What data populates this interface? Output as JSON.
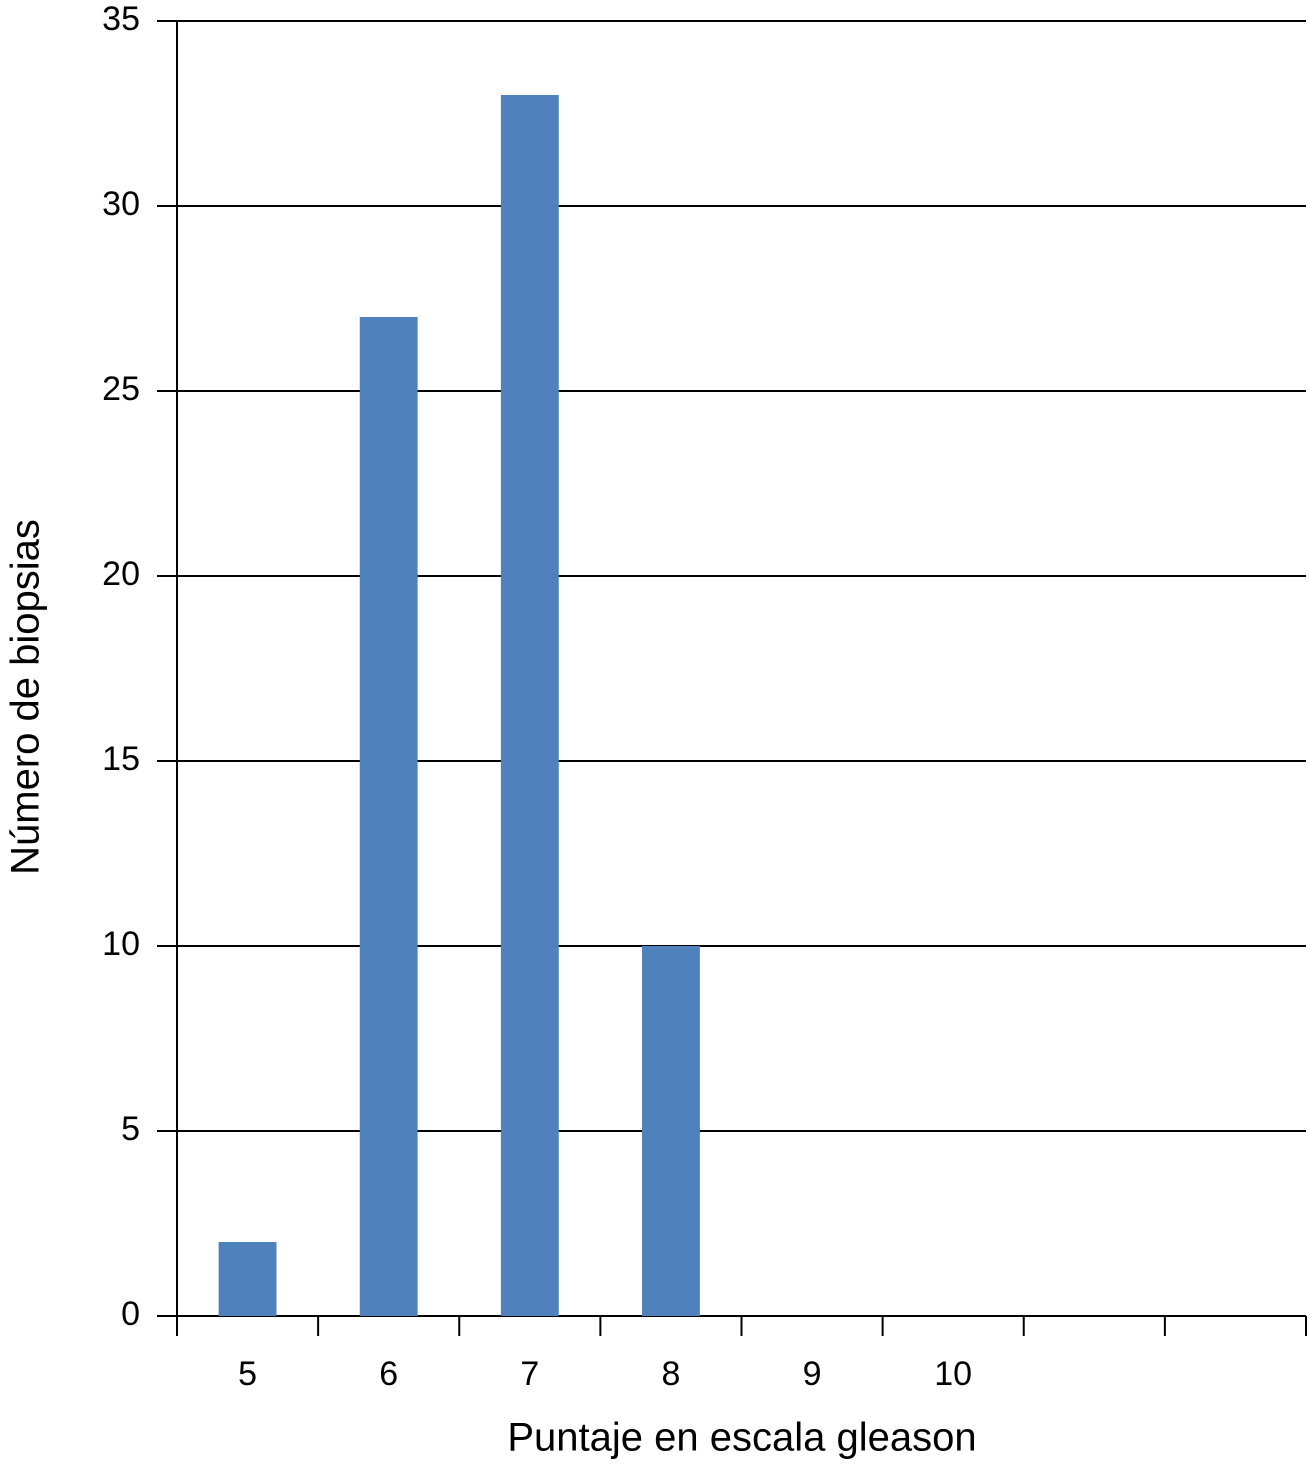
{
  "chart_data": {
    "type": "bar",
    "x_label": "Puntaje en escala gleason",
    "y_label": "Número de biopsias",
    "categories": [
      "5",
      "6",
      "7",
      "8",
      "9",
      "10",
      null,
      null
    ],
    "values": [
      2,
      27,
      33,
      10,
      0,
      0,
      null,
      null
    ],
    "color": "#4f81bd",
    "ylim": [
      0,
      35
    ],
    "yticks": [
      0,
      5,
      10,
      15,
      20,
      25,
      30,
      35
    ],
    "grid": true
  }
}
